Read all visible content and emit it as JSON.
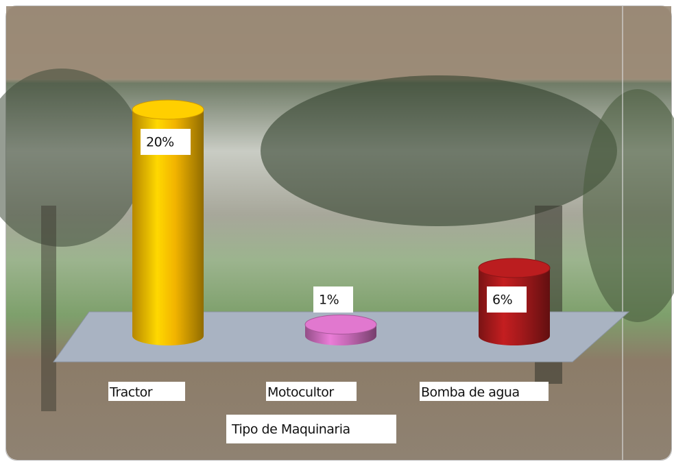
{
  "chart_data": {
    "type": "bar",
    "categories": [
      "Tractor",
      "Motocultor",
      "Bomba de agua"
    ],
    "values": [
      20,
      1,
      6
    ],
    "value_labels": [
      "20%",
      "1%",
      "6%"
    ],
    "colors": [
      "#f2b400",
      "#c468b4",
      "#a3191b"
    ],
    "x_label": "Tipo de Maquinaria"
  }
}
